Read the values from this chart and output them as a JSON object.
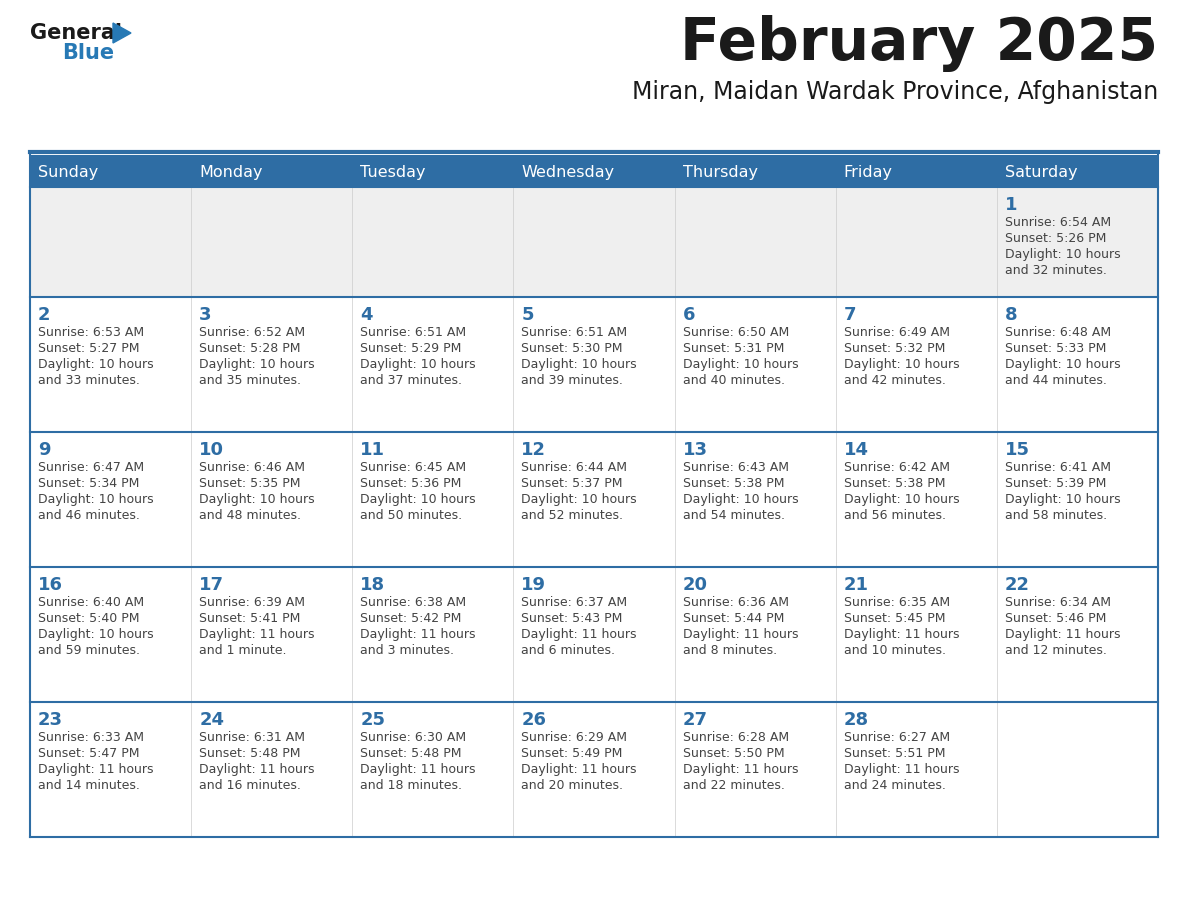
{
  "title": "February 2025",
  "subtitle": "Miran, Maidan Wardak Province, Afghanistan",
  "days_of_week": [
    "Sunday",
    "Monday",
    "Tuesday",
    "Wednesday",
    "Thursday",
    "Friday",
    "Saturday"
  ],
  "header_bg": "#2E6DA4",
  "header_text": "#FFFFFF",
  "cell_bg_row0": "#EFEFEF",
  "cell_bg_normal": "#FFFFFF",
  "line_color": "#2E6DA4",
  "text_color_dark": "#444444",
  "text_color_num": "#2E6DA4",
  "logo_general_color": "#1a1a1a",
  "logo_blue_color": "#2779B5",
  "days": [
    {
      "day": 1,
      "col": 6,
      "row": 0,
      "sunrise": "6:54 AM",
      "sunset": "5:26 PM",
      "daylight_line1": "Daylight: 10 hours",
      "daylight_line2": "and 32 minutes."
    },
    {
      "day": 2,
      "col": 0,
      "row": 1,
      "sunrise": "6:53 AM",
      "sunset": "5:27 PM",
      "daylight_line1": "Daylight: 10 hours",
      "daylight_line2": "and 33 minutes."
    },
    {
      "day": 3,
      "col": 1,
      "row": 1,
      "sunrise": "6:52 AM",
      "sunset": "5:28 PM",
      "daylight_line1": "Daylight: 10 hours",
      "daylight_line2": "and 35 minutes."
    },
    {
      "day": 4,
      "col": 2,
      "row": 1,
      "sunrise": "6:51 AM",
      "sunset": "5:29 PM",
      "daylight_line1": "Daylight: 10 hours",
      "daylight_line2": "and 37 minutes."
    },
    {
      "day": 5,
      "col": 3,
      "row": 1,
      "sunrise": "6:51 AM",
      "sunset": "5:30 PM",
      "daylight_line1": "Daylight: 10 hours",
      "daylight_line2": "and 39 minutes."
    },
    {
      "day": 6,
      "col": 4,
      "row": 1,
      "sunrise": "6:50 AM",
      "sunset": "5:31 PM",
      "daylight_line1": "Daylight: 10 hours",
      "daylight_line2": "and 40 minutes."
    },
    {
      "day": 7,
      "col": 5,
      "row": 1,
      "sunrise": "6:49 AM",
      "sunset": "5:32 PM",
      "daylight_line1": "Daylight: 10 hours",
      "daylight_line2": "and 42 minutes."
    },
    {
      "day": 8,
      "col": 6,
      "row": 1,
      "sunrise": "6:48 AM",
      "sunset": "5:33 PM",
      "daylight_line1": "Daylight: 10 hours",
      "daylight_line2": "and 44 minutes."
    },
    {
      "day": 9,
      "col": 0,
      "row": 2,
      "sunrise": "6:47 AM",
      "sunset": "5:34 PM",
      "daylight_line1": "Daylight: 10 hours",
      "daylight_line2": "and 46 minutes."
    },
    {
      "day": 10,
      "col": 1,
      "row": 2,
      "sunrise": "6:46 AM",
      "sunset": "5:35 PM",
      "daylight_line1": "Daylight: 10 hours",
      "daylight_line2": "and 48 minutes."
    },
    {
      "day": 11,
      "col": 2,
      "row": 2,
      "sunrise": "6:45 AM",
      "sunset": "5:36 PM",
      "daylight_line1": "Daylight: 10 hours",
      "daylight_line2": "and 50 minutes."
    },
    {
      "day": 12,
      "col": 3,
      "row": 2,
      "sunrise": "6:44 AM",
      "sunset": "5:37 PM",
      "daylight_line1": "Daylight: 10 hours",
      "daylight_line2": "and 52 minutes."
    },
    {
      "day": 13,
      "col": 4,
      "row": 2,
      "sunrise": "6:43 AM",
      "sunset": "5:38 PM",
      "daylight_line1": "Daylight: 10 hours",
      "daylight_line2": "and 54 minutes."
    },
    {
      "day": 14,
      "col": 5,
      "row": 2,
      "sunrise": "6:42 AM",
      "sunset": "5:38 PM",
      "daylight_line1": "Daylight: 10 hours",
      "daylight_line2": "and 56 minutes."
    },
    {
      "day": 15,
      "col": 6,
      "row": 2,
      "sunrise": "6:41 AM",
      "sunset": "5:39 PM",
      "daylight_line1": "Daylight: 10 hours",
      "daylight_line2": "and 58 minutes."
    },
    {
      "day": 16,
      "col": 0,
      "row": 3,
      "sunrise": "6:40 AM",
      "sunset": "5:40 PM",
      "daylight_line1": "Daylight: 10 hours",
      "daylight_line2": "and 59 minutes."
    },
    {
      "day": 17,
      "col": 1,
      "row": 3,
      "sunrise": "6:39 AM",
      "sunset": "5:41 PM",
      "daylight_line1": "Daylight: 11 hours",
      "daylight_line2": "and 1 minute."
    },
    {
      "day": 18,
      "col": 2,
      "row": 3,
      "sunrise": "6:38 AM",
      "sunset": "5:42 PM",
      "daylight_line1": "Daylight: 11 hours",
      "daylight_line2": "and 3 minutes."
    },
    {
      "day": 19,
      "col": 3,
      "row": 3,
      "sunrise": "6:37 AM",
      "sunset": "5:43 PM",
      "daylight_line1": "Daylight: 11 hours",
      "daylight_line2": "and 6 minutes."
    },
    {
      "day": 20,
      "col": 4,
      "row": 3,
      "sunrise": "6:36 AM",
      "sunset": "5:44 PM",
      "daylight_line1": "Daylight: 11 hours",
      "daylight_line2": "and 8 minutes."
    },
    {
      "day": 21,
      "col": 5,
      "row": 3,
      "sunrise": "6:35 AM",
      "sunset": "5:45 PM",
      "daylight_line1": "Daylight: 11 hours",
      "daylight_line2": "and 10 minutes."
    },
    {
      "day": 22,
      "col": 6,
      "row": 3,
      "sunrise": "6:34 AM",
      "sunset": "5:46 PM",
      "daylight_line1": "Daylight: 11 hours",
      "daylight_line2": "and 12 minutes."
    },
    {
      "day": 23,
      "col": 0,
      "row": 4,
      "sunrise": "6:33 AM",
      "sunset": "5:47 PM",
      "daylight_line1": "Daylight: 11 hours",
      "daylight_line2": "and 14 minutes."
    },
    {
      "day": 24,
      "col": 1,
      "row": 4,
      "sunrise": "6:31 AM",
      "sunset": "5:48 PM",
      "daylight_line1": "Daylight: 11 hours",
      "daylight_line2": "and 16 minutes."
    },
    {
      "day": 25,
      "col": 2,
      "row": 4,
      "sunrise": "6:30 AM",
      "sunset": "5:48 PM",
      "daylight_line1": "Daylight: 11 hours",
      "daylight_line2": "and 18 minutes."
    },
    {
      "day": 26,
      "col": 3,
      "row": 4,
      "sunrise": "6:29 AM",
      "sunset": "5:49 PM",
      "daylight_line1": "Daylight: 11 hours",
      "daylight_line2": "and 20 minutes."
    },
    {
      "day": 27,
      "col": 4,
      "row": 4,
      "sunrise": "6:28 AM",
      "sunset": "5:50 PM",
      "daylight_line1": "Daylight: 11 hours",
      "daylight_line2": "and 22 minutes."
    },
    {
      "day": 28,
      "col": 5,
      "row": 4,
      "sunrise": "6:27 AM",
      "sunset": "5:51 PM",
      "daylight_line1": "Daylight: 11 hours",
      "daylight_line2": "and 24 minutes."
    }
  ],
  "num_rows": 5
}
